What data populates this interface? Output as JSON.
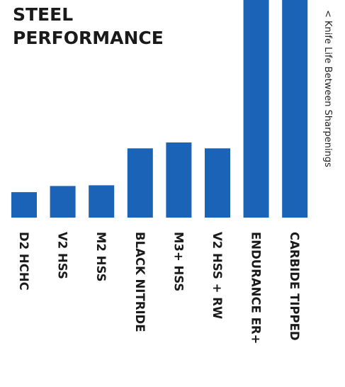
{
  "title_lines": [
    "STEEL",
    "PERFORMANCE"
  ],
  "chart_data": {
    "type": "bar",
    "orientation": "vertical",
    "title": "STEEL PERFORMANCE",
    "ylabel": "< Knife Life Between Sharpenings",
    "xlabel": "",
    "categories": [
      "D2 HCHC",
      "V2 HSS",
      "M2 HSS",
      "BLACK NITRIDE",
      "M3+ HSS",
      "V2 HSS + RW",
      "ENDURANCE ER+",
      "CARBIDE TIPPED"
    ],
    "values": [
      1.0,
      1.24,
      1.27,
      2.72,
      2.95,
      2.72,
      8.6,
      8.6
    ],
    "ylim": [
      0,
      8.6
    ],
    "y_axis_ticks": "none",
    "grid": false,
    "legend": "none",
    "bar_color": "#1b63b7"
  }
}
